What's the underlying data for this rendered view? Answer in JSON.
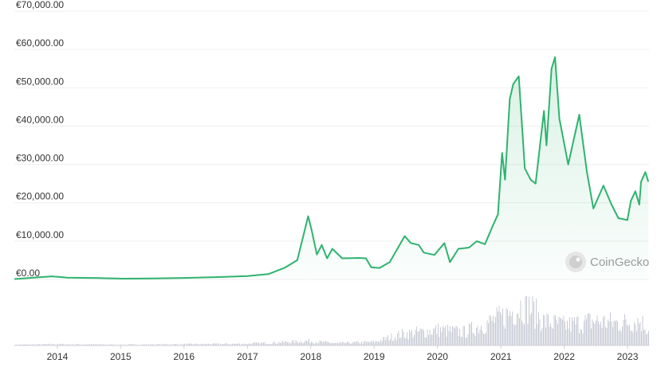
{
  "chart_data": {
    "type": "area",
    "series": [
      {
        "name": "",
        "color": "#2fb36f",
        "points": [
          [
            "2013-04-28",
            100
          ],
          [
            "2013-11-30",
            800
          ],
          [
            "2014-03-01",
            450
          ],
          [
            "2014-09-01",
            350
          ],
          [
            "2015-01-15",
            200
          ],
          [
            "2015-07-01",
            250
          ],
          [
            "2016-01-01",
            400
          ],
          [
            "2016-07-01",
            600
          ],
          [
            "2017-01-01",
            900
          ],
          [
            "2017-05-01",
            1400
          ],
          [
            "2017-08-01",
            3000
          ],
          [
            "2017-10-15",
            5000
          ],
          [
            "2017-12-17",
            16500
          ],
          [
            "2018-01-05",
            13000
          ],
          [
            "2018-02-05",
            6500
          ],
          [
            "2018-03-05",
            9000
          ],
          [
            "2018-04-05",
            5500
          ],
          [
            "2018-05-05",
            8000
          ],
          [
            "2018-07-01",
            5500
          ],
          [
            "2018-10-01",
            5600
          ],
          [
            "2018-11-15",
            5500
          ],
          [
            "2018-12-15",
            3200
          ],
          [
            "2019-02-01",
            3000
          ],
          [
            "2019-04-01",
            4500
          ],
          [
            "2019-06-26",
            11300
          ],
          [
            "2019-08-01",
            9500
          ],
          [
            "2019-09-15",
            9000
          ],
          [
            "2019-10-15",
            7000
          ],
          [
            "2019-12-15",
            6400
          ],
          [
            "2020-02-10",
            9500
          ],
          [
            "2020-03-13",
            4500
          ],
          [
            "2020-05-01",
            8000
          ],
          [
            "2020-07-01",
            8300
          ],
          [
            "2020-08-15",
            10000
          ],
          [
            "2020-10-01",
            9200
          ],
          [
            "2020-11-15",
            14000
          ],
          [
            "2020-12-15",
            17000
          ],
          [
            "2021-01-08",
            33000
          ],
          [
            "2021-01-25",
            26000
          ],
          [
            "2021-02-21",
            47000
          ],
          [
            "2021-03-13",
            51000
          ],
          [
            "2021-04-14",
            53000
          ],
          [
            "2021-05-19",
            29000
          ],
          [
            "2021-06-22",
            26000
          ],
          [
            "2021-07-20",
            25000
          ],
          [
            "2021-09-06",
            44000
          ],
          [
            "2021-09-21",
            35000
          ],
          [
            "2021-10-20",
            55000
          ],
          [
            "2021-11-09",
            58000
          ],
          [
            "2021-12-04",
            42000
          ],
          [
            "2022-01-24",
            30000
          ],
          [
            "2022-03-29",
            43000
          ],
          [
            "2022-05-12",
            28000
          ],
          [
            "2022-06-18",
            18500
          ],
          [
            "2022-08-15",
            24500
          ],
          [
            "2022-10-01",
            19500
          ],
          [
            "2022-11-09",
            16000
          ],
          [
            "2022-12-31",
            15500
          ],
          [
            "2023-01-20",
            20500
          ],
          [
            "2023-02-15",
            23000
          ],
          [
            "2023-03-10",
            19500
          ],
          [
            "2023-03-20",
            25500
          ],
          [
            "2023-04-14",
            28000
          ],
          [
            "2023-05-01",
            25500
          ]
        ]
      }
    ],
    "xaxis": {
      "type": "date",
      "range": [
        "2013-04-28",
        "2023-05-05"
      ],
      "tick_labels": [
        "2014",
        "2015",
        "2016",
        "2017",
        "2018",
        "2019",
        "2020",
        "2021",
        "2022",
        "2023"
      ]
    },
    "yaxis": {
      "range": [
        0,
        70000
      ],
      "tick_values": [
        0,
        10000,
        20000,
        30000,
        40000,
        50000,
        60000,
        70000
      ],
      "tick_labels": [
        "€0.00",
        "€10,000.00",
        "€20,000.00",
        "€30,000.00",
        "€40,000.00",
        "€50,000.00",
        "€60,000.00",
        "€70,000.00"
      ]
    },
    "volume": {
      "color": "#c8cbd6",
      "points": [
        [
          "2013-06-01",
          0.02
        ],
        [
          "2014-01-01",
          0.03
        ],
        [
          "2015-01-01",
          0.02
        ],
        [
          "2016-01-01",
          0.03
        ],
        [
          "2017-01-01",
          0.04
        ],
        [
          "2017-12-15",
          0.1
        ],
        [
          "2018-06-01",
          0.05
        ],
        [
          "2019-01-01",
          0.08
        ],
        [
          "2019-06-01",
          0.25
        ],
        [
          "2020-01-01",
          0.35
        ],
        [
          "2020-06-01",
          0.3
        ],
        [
          "2021-01-15",
          0.65
        ],
        [
          "2021-05-19",
          0.95
        ],
        [
          "2021-09-01",
          0.55
        ],
        [
          "2021-11-01",
          0.5
        ],
        [
          "2022-01-01",
          0.45
        ],
        [
          "2022-06-15",
          0.55
        ],
        [
          "2022-11-09",
          0.5
        ],
        [
          "2023-03-15",
          0.55
        ],
        [
          "2023-05-01",
          0.35
        ]
      ]
    },
    "grid": true,
    "legend": "none"
  },
  "watermark": {
    "brand": "CoinGecko"
  }
}
